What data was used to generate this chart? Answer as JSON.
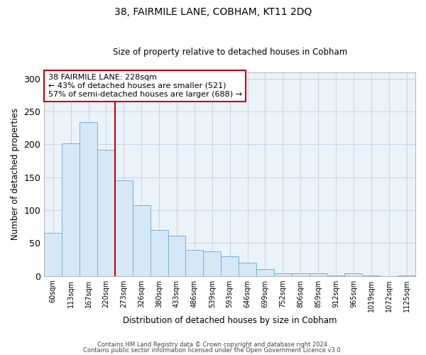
{
  "title": "38, FAIRMILE LANE, COBHAM, KT11 2DQ",
  "subtitle": "Size of property relative to detached houses in Cobham",
  "xlabel": "Distribution of detached houses by size in Cobham",
  "ylabel": "Number of detached properties",
  "bar_labels": [
    "60sqm",
    "113sqm",
    "167sqm",
    "220sqm",
    "273sqm",
    "326sqm",
    "380sqm",
    "433sqm",
    "486sqm",
    "539sqm",
    "593sqm",
    "646sqm",
    "699sqm",
    "752sqm",
    "806sqm",
    "859sqm",
    "912sqm",
    "965sqm",
    "1019sqm",
    "1072sqm",
    "1125sqm"
  ],
  "bar_values": [
    65,
    202,
    234,
    192,
    145,
    108,
    70,
    61,
    39,
    37,
    30,
    20,
    10,
    4,
    4,
    4,
    1,
    4,
    1,
    0,
    1
  ],
  "bar_color": "#d6e8f5",
  "bar_edgecolor": "#7ab0d4",
  "vline_x": 3.5,
  "vline_color": "#cc0000",
  "annotation_text": "38 FAIRMILE LANE: 228sqm\n← 43% of detached houses are smaller (521)\n57% of semi-detached houses are larger (688) →",
  "annotation_box_edgecolor": "#cc0000",
  "annotation_box_facecolor": "#ffffff",
  "ylim": [
    0,
    310
  ],
  "yticks": [
    0,
    50,
    100,
    150,
    200,
    250,
    300
  ],
  "footer_line1": "Contains HM Land Registry data © Crown copyright and database right 2024.",
  "footer_line2": "Contains public sector information licensed under the Open Government Licence v3.0.",
  "background_color": "#ffffff",
  "plot_bg_color": "#eaf3fa",
  "grid_color": "#c8d8e8"
}
